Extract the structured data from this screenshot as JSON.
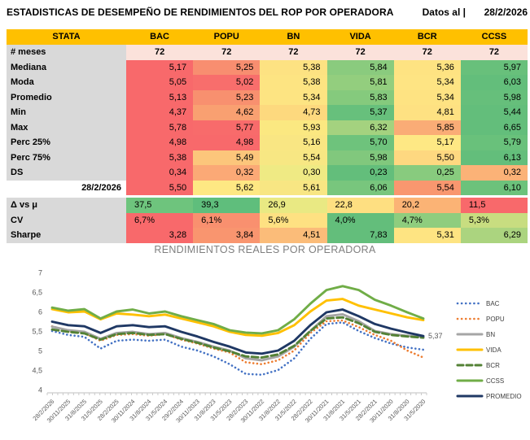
{
  "header": {
    "title": "ESTADISTICAS DE DESEMPEÑO DE RENDIMIENTOS DEL ROP POR OPERADORA",
    "datos_label": "Datos al |",
    "date": "28/2/2026"
  },
  "table": {
    "columns": [
      "STATA",
      "BAC",
      "POPU",
      "BN",
      "VIDA",
      "BCR",
      "CCSS"
    ],
    "header_bg": "#FFC000",
    "label_bg": "#D9D9D9",
    "rows": [
      {
        "label": "# meses",
        "align": "center",
        "cells": [
          {
            "v": "72",
            "c": "#FBE2DB"
          },
          {
            "v": "72",
            "c": "#FBE2DB"
          },
          {
            "v": "72",
            "c": "#FBE2DB"
          },
          {
            "v": "72",
            "c": "#FBE2DB"
          },
          {
            "v": "72",
            "c": "#FBE2DB"
          },
          {
            "v": "72",
            "c": "#FBE2DB"
          }
        ]
      },
      {
        "label": "Mediana",
        "align": "right",
        "cells": [
          {
            "v": "5,17",
            "c": "#F8696B"
          },
          {
            "v": "5,25",
            "c": "#F88E70"
          },
          {
            "v": "5,38",
            "c": "#FDE282"
          },
          {
            "v": "5,84",
            "c": "#8ACB7E"
          },
          {
            "v": "5,36",
            "c": "#FEE382"
          },
          {
            "v": "5,97",
            "c": "#68C07B"
          }
        ]
      },
      {
        "label": "Moda",
        "align": "right",
        "cells": [
          {
            "v": "5,05",
            "c": "#F8696B"
          },
          {
            "v": "5,02",
            "c": "#F86E6C"
          },
          {
            "v": "5,38",
            "c": "#FDE482"
          },
          {
            "v": "5,81",
            "c": "#93CE7E"
          },
          {
            "v": "5,34",
            "c": "#FEE483"
          },
          {
            "v": "6,03",
            "c": "#63BE7B"
          }
        ]
      },
      {
        "label": "Promedio",
        "align": "right",
        "cells": [
          {
            "v": "5,13",
            "c": "#F8696B"
          },
          {
            "v": "5,23",
            "c": "#F8906F"
          },
          {
            "v": "5,34",
            "c": "#FDE482"
          },
          {
            "v": "5,83",
            "c": "#85CA7D"
          },
          {
            "v": "5,34",
            "c": "#FEE382"
          },
          {
            "v": "5,98",
            "c": "#66BF7B"
          }
        ]
      },
      {
        "label": "Min",
        "align": "right",
        "cells": [
          {
            "v": "4,37",
            "c": "#F8696B"
          },
          {
            "v": "4,62",
            "c": "#F9A071"
          },
          {
            "v": "4,73",
            "c": "#FDD97E"
          },
          {
            "v": "5,37",
            "c": "#67C07C"
          },
          {
            "v": "4,81",
            "c": "#FEE182"
          },
          {
            "v": "5,44",
            "c": "#63BE7B"
          }
        ]
      },
      {
        "label": "Max",
        "align": "right",
        "cells": [
          {
            "v": "5,78",
            "c": "#F8696B"
          },
          {
            "v": "5,77",
            "c": "#F86B6B"
          },
          {
            "v": "5,93",
            "c": "#FBE881"
          },
          {
            "v": "6,32",
            "c": "#A4D27F"
          },
          {
            "v": "5,85",
            "c": "#FAAC76"
          },
          {
            "v": "6,65",
            "c": "#63BE7B"
          }
        ]
      },
      {
        "label": "Perc 25%",
        "align": "right",
        "cells": [
          {
            "v": "4,98",
            "c": "#F8696B"
          },
          {
            "v": "4,98",
            "c": "#F8696B"
          },
          {
            "v": "5,16",
            "c": "#F9E683"
          },
          {
            "v": "5,70",
            "c": "#6EC37C"
          },
          {
            "v": "5,17",
            "c": "#FEE884"
          },
          {
            "v": "5,79",
            "c": "#69C17B"
          }
        ]
      },
      {
        "label": "Perc 75%",
        "align": "right",
        "cells": [
          {
            "v": "5,38",
            "c": "#F8696B"
          },
          {
            "v": "5,49",
            "c": "#FCC67B"
          },
          {
            "v": "5,54",
            "c": "#F7E783"
          },
          {
            "v": "5,98",
            "c": "#81C87D"
          },
          {
            "v": "5,50",
            "c": "#FED880"
          },
          {
            "v": "6,13",
            "c": "#63BE7B"
          }
        ]
      },
      {
        "label": "DS",
        "align": "right",
        "cells": [
          {
            "v": "0,34",
            "c": "#F8696B"
          },
          {
            "v": "0,32",
            "c": "#FBA976"
          },
          {
            "v": "0,30",
            "c": "#EFEA84"
          },
          {
            "v": "0,23",
            "c": "#63BE7B"
          },
          {
            "v": "0,25",
            "c": "#88CB7E"
          },
          {
            "v": "0,32",
            "c": "#FBB277"
          }
        ]
      },
      {
        "label": "28/2/2026",
        "align": "right",
        "label_bg": "#FFFFFF",
        "cells": [
          {
            "v": "5,50",
            "c": "#F8696B"
          },
          {
            "v": "5,62",
            "c": "#FEE883"
          },
          {
            "v": "5,61",
            "c": "#F8E683"
          },
          {
            "v": "6,06",
            "c": "#78C67D"
          },
          {
            "v": "5,54",
            "c": "#F9976F"
          },
          {
            "v": "6,10",
            "c": "#6CC27B"
          }
        ]
      },
      {
        "label": "Δ vs μ",
        "align": "left",
        "gap_before": true,
        "cells": [
          {
            "v": "37,5",
            "c": "#6EC47D"
          },
          {
            "v": "39,3",
            "c": "#5FBE7C"
          },
          {
            "v": "26,9",
            "c": "#E9E983"
          },
          {
            "v": "22,8",
            "c": "#FEDF81"
          },
          {
            "v": "20,2",
            "c": "#FBB375"
          },
          {
            "v": "11,5",
            "c": "#F8696B"
          }
        ]
      },
      {
        "label": "CV",
        "align": "left",
        "cells": [
          {
            "v": "6,7%",
            "c": "#F8696B"
          },
          {
            "v": "6,1%",
            "c": "#F9906F"
          },
          {
            "v": "5,6%",
            "c": "#FEE182"
          },
          {
            "v": "4,0%",
            "c": "#63BE7B"
          },
          {
            "v": "4,7%",
            "c": "#8FCD7E"
          },
          {
            "v": "5,3%",
            "c": "#C8DD80"
          }
        ]
      },
      {
        "label": "Sharpe",
        "align": "right",
        "cells": [
          {
            "v": "3,28",
            "c": "#F8696B"
          },
          {
            "v": "3,84",
            "c": "#F9956F"
          },
          {
            "v": "4,51",
            "c": "#FBBC79"
          },
          {
            "v": "7,83",
            "c": "#63BE7B"
          },
          {
            "v": "5,31",
            "c": "#FEE482"
          },
          {
            "v": "6,29",
            "c": "#ABD47F"
          }
        ]
      }
    ]
  },
  "chart_data": {
    "type": "line",
    "title": "RENDIMIENTOS REALES POR OPERADORA",
    "ylim": [
      4,
      7
    ],
    "y_ticks": [
      "7",
      "6,5",
      "6",
      "5,5",
      "5",
      "4,5",
      "4"
    ],
    "grid": false,
    "legend_position": "right",
    "annotation": {
      "text": "5,37",
      "series": "PROMEDIO",
      "point": "last"
    },
    "x_labels": [
      "28/2/2026",
      "30/11/2025",
      "31/8/2025",
      "31/5/2025",
      "28/2/2025",
      "30/11/2024",
      "31/8/2024",
      "31/5/2024",
      "29/2/2024",
      "30/11/2023",
      "31/8/2023",
      "31/5/2023",
      "28/2/2023",
      "30/11/2022",
      "31/8/2022",
      "31/5/2022",
      "28/2/2022",
      "30/11/2021",
      "31/8/2021",
      "31/5/2021",
      "28/2/2021",
      "30/11/2020",
      "31/8/2020",
      "31/5/2020"
    ],
    "series": [
      {
        "name": "BAC",
        "color": "#4472C4",
        "style": "dotted",
        "values": [
          5.5,
          5.4,
          5.35,
          5.05,
          5.25,
          5.28,
          5.25,
          5.28,
          5.1,
          5.0,
          4.85,
          4.65,
          4.4,
          4.38,
          4.5,
          4.8,
          5.3,
          5.68,
          5.72,
          5.5,
          5.32,
          5.18,
          5.08,
          5.02
        ]
      },
      {
        "name": "POPU",
        "color": "#ED7D31",
        "style": "dotted",
        "values": [
          5.62,
          5.5,
          5.45,
          5.25,
          5.4,
          5.42,
          5.38,
          5.42,
          5.28,
          5.18,
          5.05,
          4.95,
          4.7,
          4.65,
          4.75,
          5.0,
          5.45,
          5.75,
          5.77,
          5.6,
          5.4,
          5.25,
          5.0,
          4.82
        ]
      },
      {
        "name": "BN",
        "color": "#A5A5A5",
        "style": "solid",
        "values": [
          5.61,
          5.52,
          5.48,
          5.3,
          5.45,
          5.48,
          5.42,
          5.45,
          5.32,
          5.22,
          5.1,
          5.0,
          4.8,
          4.75,
          4.85,
          5.1,
          5.5,
          5.88,
          5.93,
          5.75,
          5.5,
          5.42,
          5.38,
          5.35
        ]
      },
      {
        "name": "VIDA",
        "color": "#FFC000",
        "style": "solid",
        "values": [
          6.06,
          5.98,
          6.0,
          5.8,
          5.95,
          5.92,
          5.88,
          5.92,
          5.82,
          5.72,
          5.62,
          5.48,
          5.4,
          5.38,
          5.45,
          5.65,
          6.0,
          6.28,
          6.32,
          6.15,
          6.05,
          5.95,
          5.85,
          5.78
        ]
      },
      {
        "name": "BCR",
        "color": "#538135",
        "style": "dashed",
        "values": [
          5.54,
          5.48,
          5.44,
          5.28,
          5.42,
          5.45,
          5.4,
          5.42,
          5.3,
          5.2,
          5.08,
          4.98,
          4.85,
          4.82,
          4.9,
          5.12,
          5.5,
          5.82,
          5.85,
          5.7,
          5.48,
          5.4,
          5.36,
          5.33
        ]
      },
      {
        "name": "CCSS",
        "color": "#70AD47",
        "style": "solid",
        "values": [
          6.1,
          6.02,
          6.06,
          5.82,
          6.0,
          6.05,
          5.95,
          6.0,
          5.88,
          5.78,
          5.68,
          5.52,
          5.46,
          5.44,
          5.52,
          5.8,
          6.2,
          6.55,
          6.65,
          6.55,
          6.3,
          6.15,
          5.98,
          5.82
        ]
      },
      {
        "name": "PROMEDIO",
        "color": "#1F3864",
        "style": "solid",
        "values": [
          5.74,
          5.65,
          5.62,
          5.45,
          5.62,
          5.65,
          5.6,
          5.62,
          5.48,
          5.36,
          5.22,
          5.1,
          4.95,
          4.92,
          5.0,
          5.25,
          5.65,
          5.98,
          6.05,
          5.88,
          5.68,
          5.56,
          5.46,
          5.37
        ]
      }
    ]
  }
}
